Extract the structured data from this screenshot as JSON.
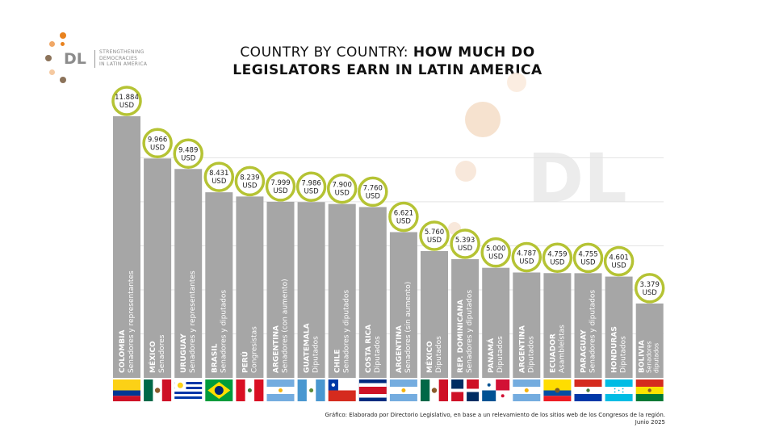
{
  "title": {
    "light": "COUNTRY BY COUNTRY:",
    "bold_line1": "HOW MUCH DO",
    "bold_line2": "LEGISLATORS EARN IN LATIN AMERICA"
  },
  "logo": {
    "letters": "DL",
    "tagline": [
      "STRENGTHENING",
      "DEMOCRACIES",
      "IN LATIN AMERICA"
    ],
    "watermark": "DL"
  },
  "footer": {
    "line1": "Gráfico: Elaborado por Directorio Legislativo, en base a un relevamiento de los sitios web de los Congresos de la región.",
    "line2": "Junio 2025"
  },
  "colors": {
    "bar": "#a6a6a6",
    "badge_ring": "#b5c334",
    "badge_fill": "#ffffff",
    "grid": "#e3e3e3",
    "label_text": "#ffffff",
    "dots": [
      "#e8821e",
      "#f0a765",
      "#f5c9a0",
      "#8c735a"
    ]
  },
  "chart_data": {
    "type": "bar",
    "ylim": [
      0,
      12500
    ],
    "unit": "USD",
    "grid": true,
    "categories": [
      {
        "country": "COLOMBIA",
        "chamber": "Senadores y representantes",
        "flag": "colombia"
      },
      {
        "country": "MÉXICO",
        "chamber": "Senadores",
        "flag": "mexico"
      },
      {
        "country": "URUGUAY",
        "chamber": "Senadores y representantes",
        "flag": "uruguay"
      },
      {
        "country": "BRASIL",
        "chamber": "Senadores y diputados",
        "flag": "brazil"
      },
      {
        "country": "PERÚ",
        "chamber": "Congresistas",
        "flag": "peru"
      },
      {
        "country": "ARGENTINA",
        "chamber": "Senadores (con aumento)",
        "flag": "argentina"
      },
      {
        "country": "GUATEMALA",
        "chamber": "Diputados",
        "flag": "guatemala"
      },
      {
        "country": "CHILE",
        "chamber": "Senadores y diputados",
        "flag": "chile"
      },
      {
        "country": "COSTA RICA",
        "chamber": "Diputados",
        "flag": "costa-rica"
      },
      {
        "country": "ARGENTINA",
        "chamber": "Senadores (sin aumento)",
        "flag": "argentina"
      },
      {
        "country": "MÉXICO",
        "chamber": "Diputados",
        "flag": "mexico"
      },
      {
        "country": "REP. DOMINICANA",
        "chamber": "Senadores y diputados",
        "flag": "dominican-republic"
      },
      {
        "country": "PANAMÁ",
        "chamber": "Diputados",
        "flag": "panama"
      },
      {
        "country": "ARGENTINA",
        "chamber": "Diputados",
        "flag": "argentina"
      },
      {
        "country": "ECUADOR",
        "chamber": "Asambleístas",
        "flag": "ecuador"
      },
      {
        "country": "PARAGUAY",
        "chamber": "Senadores y diputados",
        "flag": "paraguay"
      },
      {
        "country": "HONDURAS",
        "chamber": "Diputados",
        "flag": "honduras"
      },
      {
        "country": "BOLIVIA",
        "chamber": [
          "Senadores",
          "diputados"
        ],
        "flag": "bolivia"
      }
    ],
    "values": [
      11884,
      9966,
      9489,
      8431,
      8239,
      7999,
      7986,
      7900,
      7760,
      6621,
      5760,
      5393,
      5000,
      4787,
      4759,
      4755,
      4601,
      3379
    ],
    "value_labels": [
      "11.884",
      "9.966",
      "9.489",
      "8.431",
      "8.239",
      "7.999",
      "7.986",
      "7.900",
      "7.760",
      "6.621",
      "5.760",
      "5.393",
      "5.000",
      "4.787",
      "4.759",
      "4.755",
      "4.601",
      "3.379"
    ]
  }
}
